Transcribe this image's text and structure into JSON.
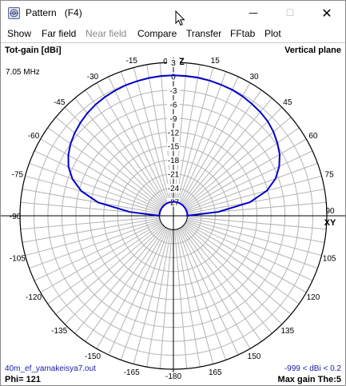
{
  "window": {
    "title": "Pattern   (F4)",
    "minimize_glyph": "—",
    "maximize_glyph": "☐",
    "close_glyph": "✕",
    "app_icon": "pattern-app-icon"
  },
  "menu": {
    "items": [
      {
        "label": "Show",
        "enabled": true
      },
      {
        "label": "Far field",
        "enabled": true
      },
      {
        "label": "Near field",
        "enabled": false
      },
      {
        "label": "Compare",
        "enabled": true
      },
      {
        "label": "Transfer",
        "enabled": true
      },
      {
        "label": "FFtab",
        "enabled": true
      },
      {
        "label": "Plot",
        "enabled": true
      }
    ]
  },
  "plot": {
    "top_left_label": "Tot-gain [dBi]",
    "top_right_label": "Vertical plane",
    "frequency": "7.05 MHz",
    "z_label": "Z",
    "xy_label": "XY",
    "filename": "40m_ef_yamakeisya7.out",
    "range_text": "-999 < dBi < 0.2",
    "phi_text": "Phi= 121",
    "max_gain_text": "Max gain The:5",
    "angle_labels": [
      {
        "text": "0",
        "deg": 0
      },
      {
        "text": "15",
        "deg": 15
      },
      {
        "text": "30",
        "deg": 30
      },
      {
        "text": "45",
        "deg": 45
      },
      {
        "text": "60",
        "deg": 60
      },
      {
        "text": "75",
        "deg": 75
      },
      {
        "text": "90",
        "deg": 90
      },
      {
        "text": "105",
        "deg": 105
      },
      {
        "text": "120",
        "deg": 120
      },
      {
        "text": "135",
        "deg": 135
      },
      {
        "text": "150",
        "deg": 150
      },
      {
        "text": "165",
        "deg": 165
      },
      {
        "text": "-180",
        "deg": 180
      },
      {
        "text": "-165",
        "deg": 195
      },
      {
        "text": "-150",
        "deg": 210
      },
      {
        "text": "-135",
        "deg": 225
      },
      {
        "text": "-120",
        "deg": 240
      },
      {
        "text": "-105",
        "deg": 255
      },
      {
        "text": "-90",
        "deg": 270
      },
      {
        "text": "-75",
        "deg": 285
      },
      {
        "text": "-60",
        "deg": 300
      },
      {
        "text": "-45",
        "deg": 315
      },
      {
        "text": "-30",
        "deg": 330
      },
      {
        "text": "-15",
        "deg": 345
      }
    ],
    "db_labels": [
      "3",
      "0",
      "-3",
      "-6",
      "-9",
      "-12",
      "-15",
      "-18",
      "-21",
      "-24",
      "-27"
    ],
    "db_values": [
      3,
      0,
      -3,
      -6,
      -9,
      -12,
      -15,
      -18,
      -21,
      -24,
      -27
    ],
    "db_min": -30,
    "db_max": 3,
    "trace_color": "#0000cc",
    "grid_color": "#b4b4b4",
    "axis_color": "#000000",
    "pattern": {
      "theta_deg": [
        -90,
        -85,
        -80,
        -75,
        -70,
        -65,
        -60,
        -55,
        -50,
        -45,
        -40,
        -35,
        -30,
        -25,
        -20,
        -15,
        -10,
        -5,
        0,
        5,
        10,
        15,
        20,
        25,
        30,
        35,
        40,
        45,
        50,
        55,
        60,
        65,
        70,
        75,
        80,
        85,
        90
      ],
      "gain_dbi": [
        -30,
        -20.6,
        -13.6,
        -9.5,
        -6.9,
        -5.1,
        -3.9,
        -3.0,
        -2.3,
        -1.7,
        -1.2,
        -0.8,
        -0.5,
        -0.3,
        -0.1,
        0.0,
        0.1,
        0.2,
        0.2,
        0.2,
        0.2,
        0.1,
        0.0,
        -0.1,
        -0.3,
        -0.6,
        -0.9,
        -1.3,
        -1.9,
        -2.7,
        -3.6,
        -4.9,
        -6.6,
        -9.2,
        -13.3,
        -20.3,
        -30
      ]
    }
  }
}
